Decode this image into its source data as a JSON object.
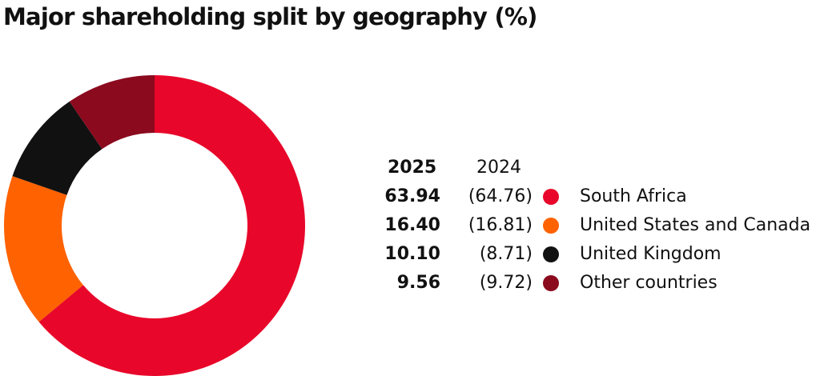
{
  "chart_data": {
    "type": "pie",
    "variant": "donut",
    "title": "Major shareholding split by geography (%)",
    "header": {
      "current": "2025",
      "previous": "2024"
    },
    "slices": [
      {
        "label": "South Africa",
        "value": 63.94,
        "value_text": "63.94",
        "previous": 64.76,
        "previous_text": "(64.76)",
        "color": "#E8072A"
      },
      {
        "label": "United States and Canada",
        "value": 16.4,
        "value_text": "16.40",
        "previous": 16.81,
        "previous_text": "(16.81)",
        "color": "#FF6200"
      },
      {
        "label": "United Kingdom",
        "value": 10.1,
        "value_text": "10.10",
        "previous": 8.71,
        "previous_text": "(8.71)",
        "color": "#111111"
      },
      {
        "label": "Other countries",
        "value": 9.56,
        "value_text": "9.56",
        "previous": 9.72,
        "previous_text": "(9.72)",
        "color": "#8B0A1E"
      }
    ],
    "start": "top",
    "direction": "clockwise",
    "legend_position": "right"
  }
}
